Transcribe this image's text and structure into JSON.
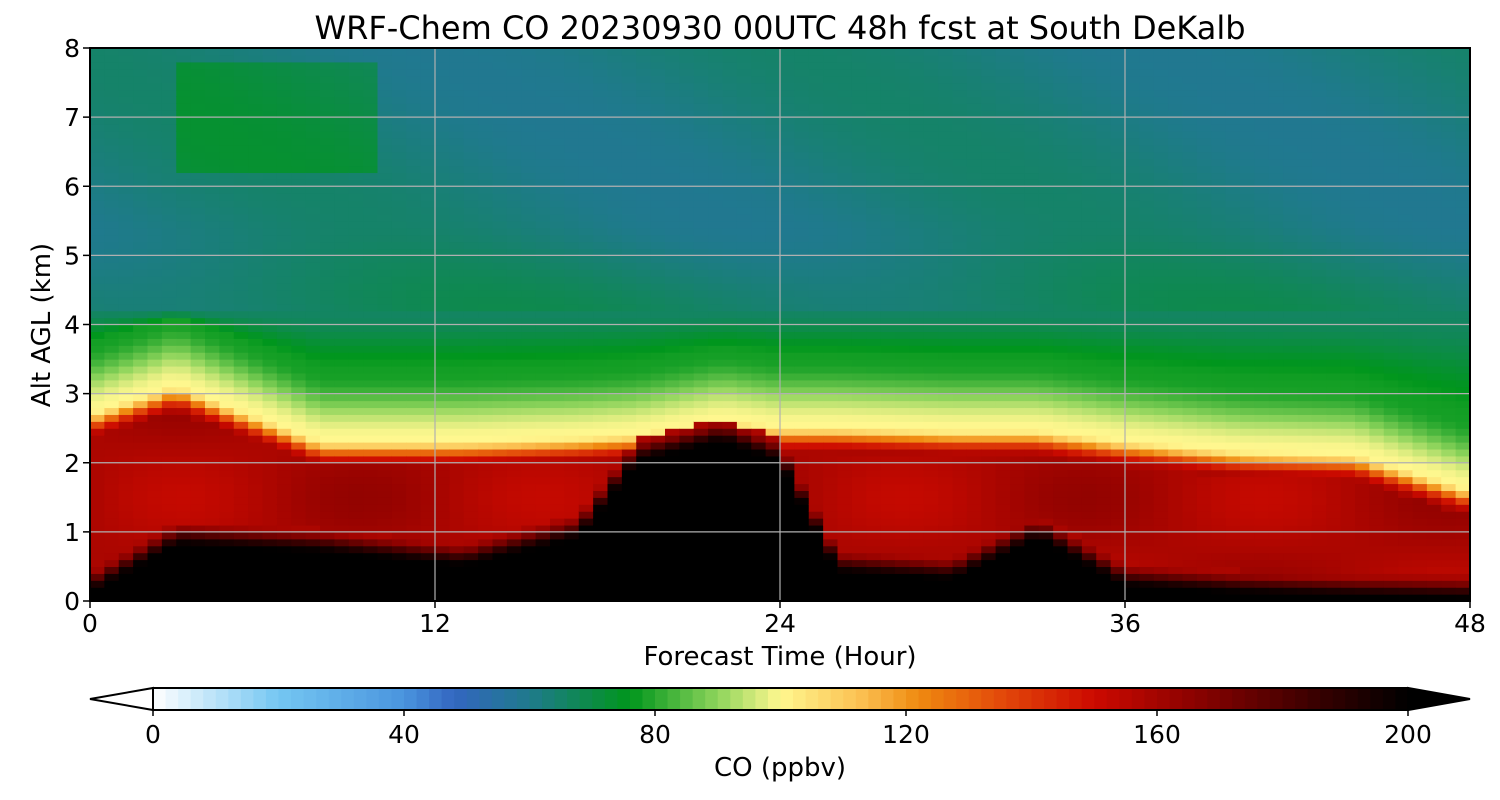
{
  "chart_data": {
    "type": "heatmap",
    "title": "WRF-Chem CO  20230930 00UTC 48h fcst at South DeKalb",
    "xlabel": "Forecast Time (Hour)",
    "ylabel": "Alt AGL (km)",
    "xlim": [
      0,
      48
    ],
    "ylim": [
      0,
      8
    ],
    "xticks": [
      0,
      12,
      24,
      36,
      48
    ],
    "yticks": [
      0,
      1,
      2,
      3,
      4,
      5,
      6,
      7,
      8
    ],
    "grid": true,
    "colorbar": {
      "label": "CO  (ppbv)",
      "orientation": "horizontal",
      "placement": "bottom",
      "range": [
        0,
        200
      ],
      "extend": "both",
      "ticks": [
        0,
        40,
        80,
        120,
        160,
        200
      ],
      "colors": [
        {
          "v": 0,
          "c": "#ffffff"
        },
        {
          "v": 20,
          "c": "#74c6f2"
        },
        {
          "v": 40,
          "c": "#4a94de"
        },
        {
          "v": 48,
          "c": "#3366c0"
        },
        {
          "v": 60,
          "c": "#1f7a8c"
        },
        {
          "v": 76,
          "c": "#00961c"
        },
        {
          "v": 90,
          "c": "#8ed45c"
        },
        {
          "v": 100,
          "c": "#fff78f"
        },
        {
          "v": 113,
          "c": "#fbbf50"
        },
        {
          "v": 122,
          "c": "#ef8a10"
        },
        {
          "v": 135,
          "c": "#e34a0a"
        },
        {
          "v": 150,
          "c": "#cc0a00"
        },
        {
          "v": 165,
          "c": "#8f0200"
        },
        {
          "v": 185,
          "c": "#3a0000"
        },
        {
          "v": 200,
          "c": "#000000"
        }
      ]
    },
    "field_keyframes": {
      "x_hours": [
        0,
        3,
        8,
        13,
        17,
        19,
        22,
        24,
        26,
        30,
        33,
        36,
        40,
        44,
        48
      ],
      "boundary_layer_top_km": [
        2.6,
        3.0,
        2.2,
        2.2,
        2.25,
        2.3,
        2.5,
        2.4,
        2.4,
        2.35,
        2.35,
        2.2,
        2.05,
        2.0,
        1.5
      ],
      "high_core_top_km": [
        0.1,
        0.8,
        0.7,
        0.5,
        0.9,
        2.0,
        2.3,
        2.0,
        0.4,
        0.3,
        0.9,
        0.2,
        0.1,
        0.05,
        0.02
      ],
      "values_ppbv": {
        "surface_core": 200,
        "boundary_layer": 158,
        "inversion": 100,
        "lower_free_troposphere": 78,
        "mid_troposphere": 66,
        "upper_troposphere": 62
      }
    }
  }
}
